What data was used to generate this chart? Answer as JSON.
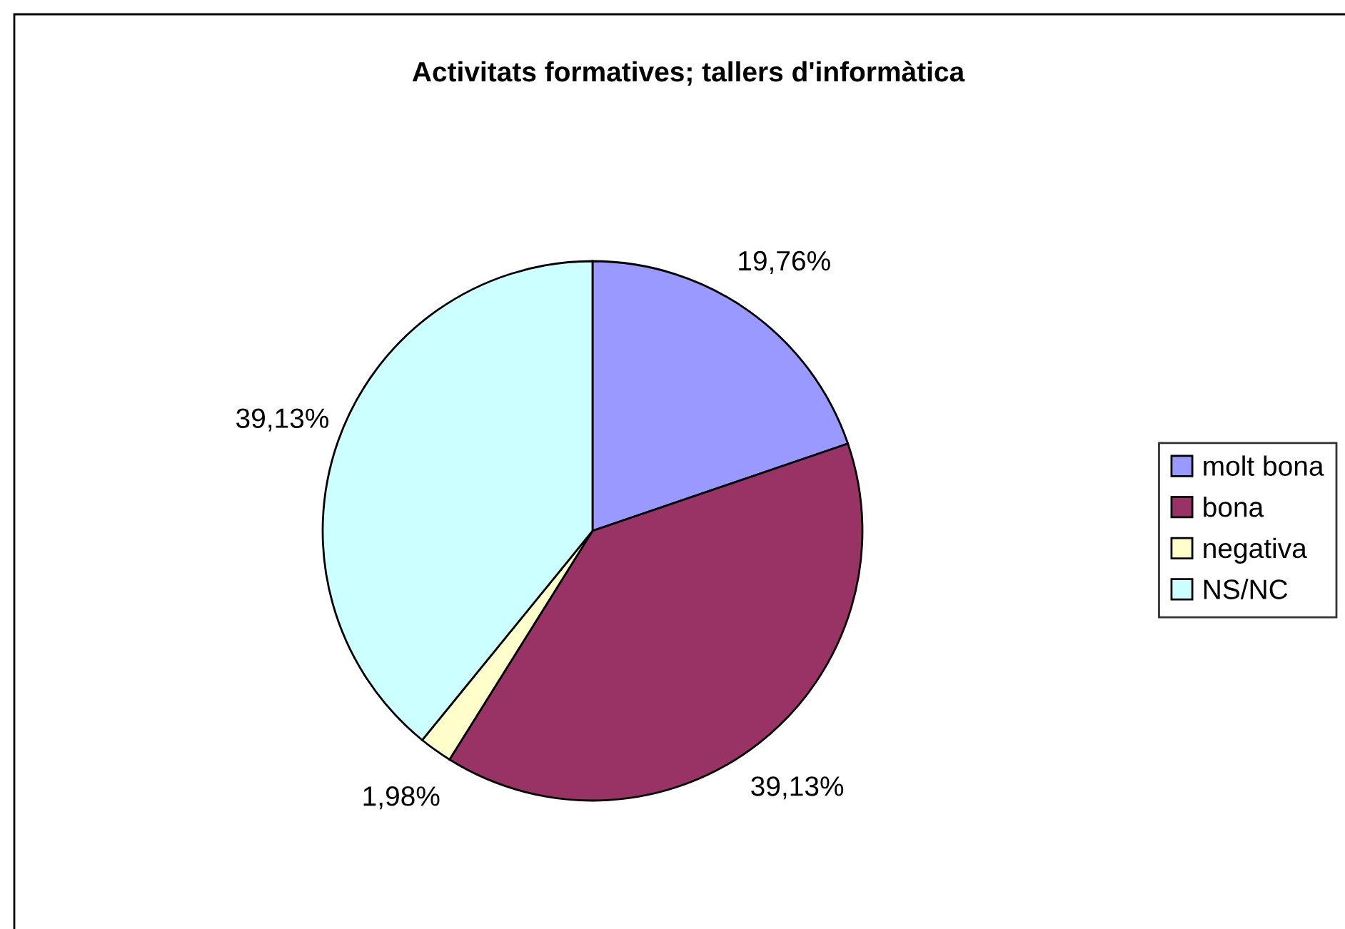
{
  "chart_data": {
    "type": "pie",
    "title": "Activitats formatives; tallers d'informàtica",
    "categories": [
      "molt bona",
      "bona",
      "negativa",
      "NS/NC"
    ],
    "values": [
      19.76,
      39.13,
      1.98,
      39.13
    ],
    "colors": [
      "#9999ff",
      "#993366",
      "#ffffcc",
      "#ccffff"
    ],
    "value_labels": [
      "19,76%",
      "39,13%",
      "1,98%",
      "39,13%"
    ],
    "legend": "right"
  }
}
